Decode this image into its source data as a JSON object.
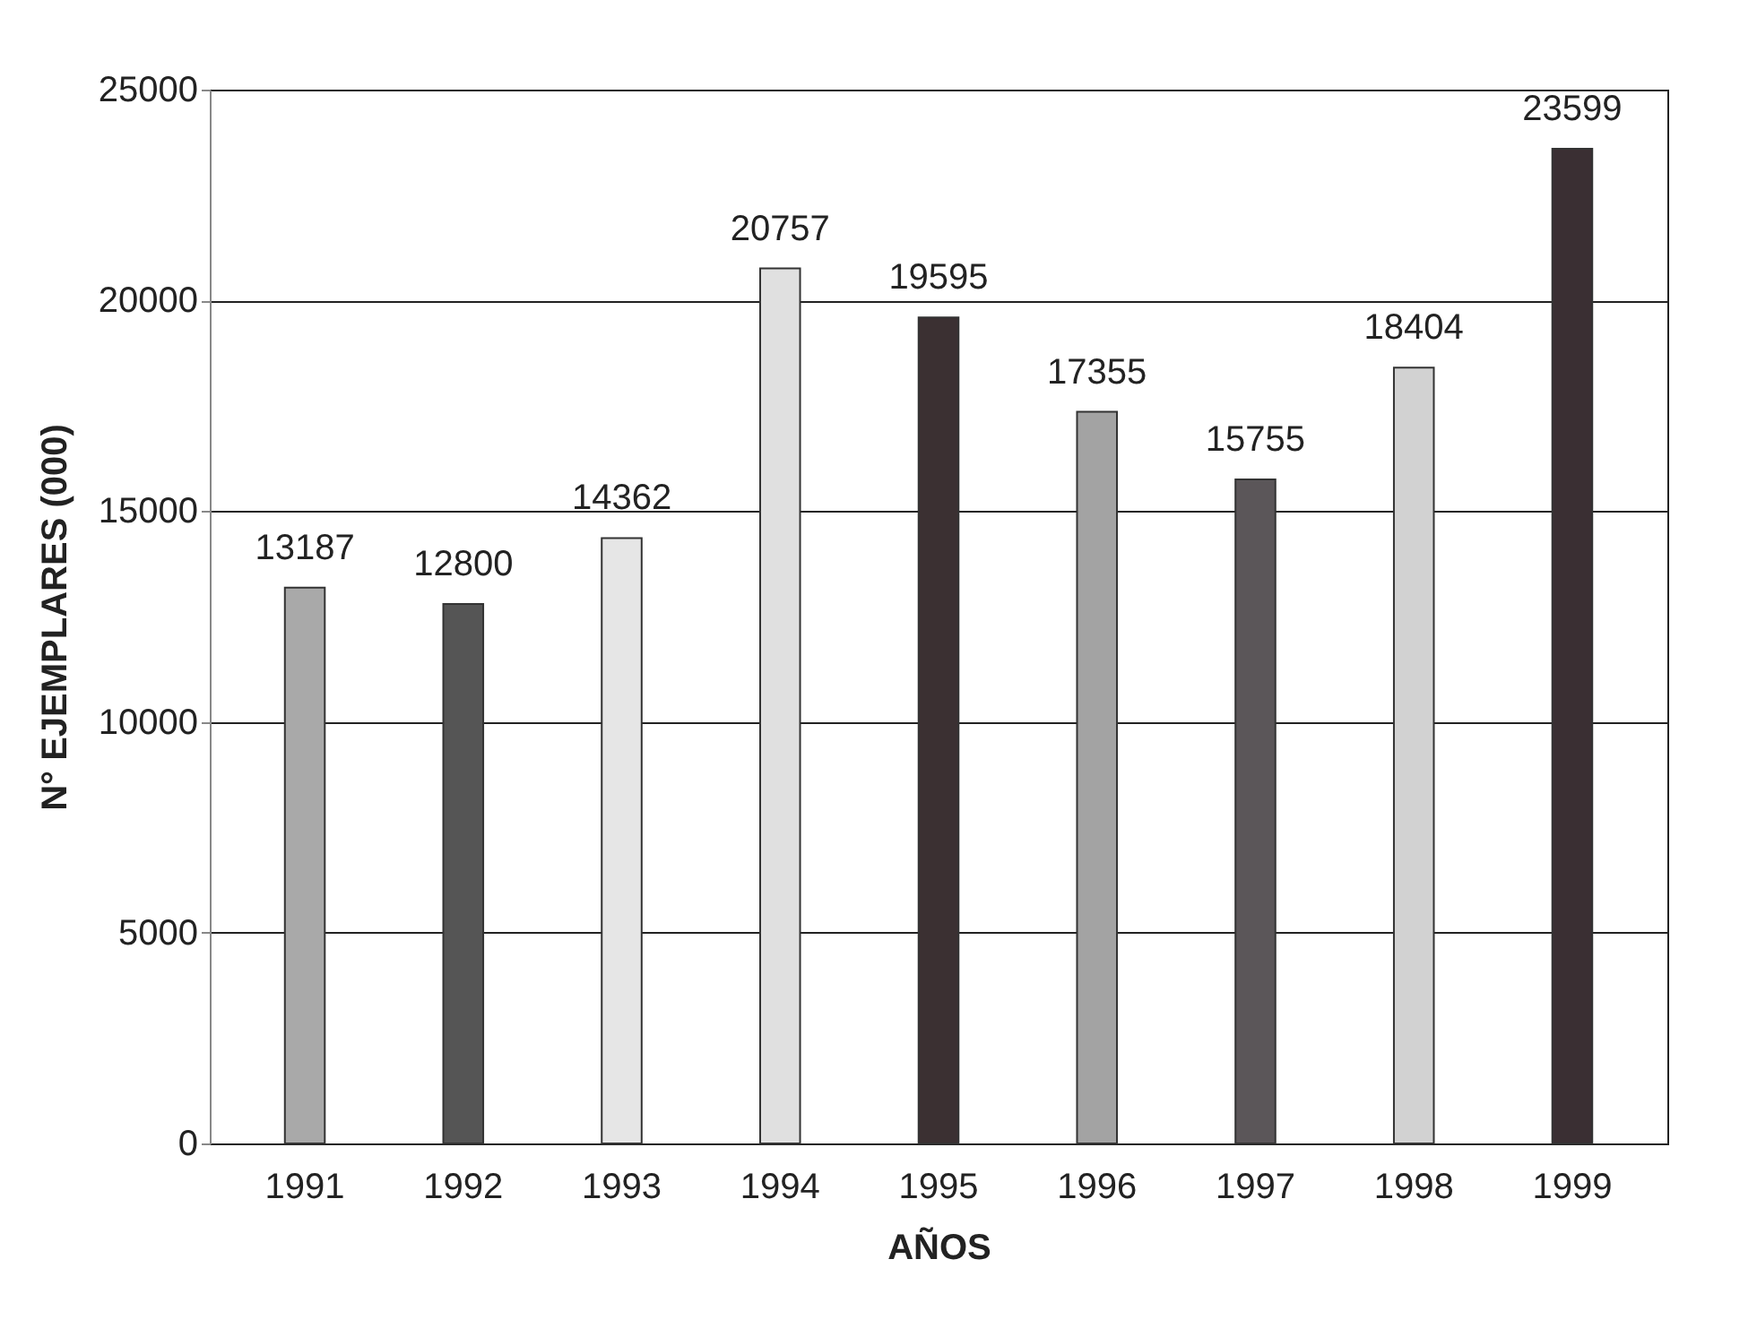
{
  "chart_data": {
    "type": "bar",
    "xlabel": "AÑOS",
    "ylabel": "N° EJEMPLARES (000)",
    "categories": [
      "1991",
      "1992",
      "1993",
      "1994",
      "1995",
      "1996",
      "1997",
      "1998",
      "1999"
    ],
    "values": [
      13187,
      12800,
      14362,
      20757,
      19595,
      17355,
      15755,
      18404,
      23599
    ],
    "colors": [
      "#a9a9a9",
      "#555555",
      "#e6e6e6",
      "#e0e0e0",
      "#3b3032",
      "#a3a3a3",
      "#5b5659",
      "#d2d2d2",
      "#3a2f33"
    ],
    "ylim": [
      0,
      25000
    ],
    "yticks": [
      0,
      5000,
      10000,
      15000,
      20000,
      25000
    ],
    "grid": "y",
    "data_labels": true
  }
}
